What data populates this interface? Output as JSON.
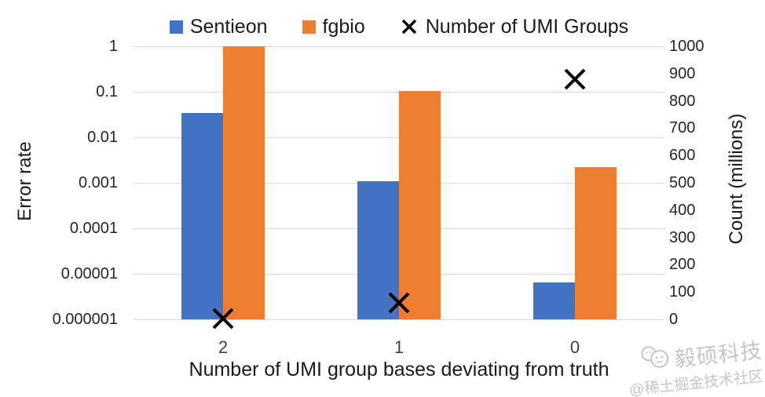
{
  "chart_data": {
    "type": "bar",
    "title": "",
    "categories": [
      "2",
      "1",
      "0"
    ],
    "series": [
      {
        "name": "Sentieon",
        "kind": "bar",
        "axis": "left",
        "color": "#4472C4",
        "values": [
          0.034,
          0.0011,
          6.5e-06
        ]
      },
      {
        "name": "fgbio",
        "kind": "bar",
        "axis": "left",
        "color": "#ED7D31",
        "values": [
          1.0,
          0.105,
          0.0022
        ]
      },
      {
        "name": "Number of UMI Groups",
        "kind": "scatter",
        "marker": "x",
        "axis": "right",
        "color": "#000000",
        "values": [
          2,
          60,
          880
        ]
      }
    ],
    "x_axis": {
      "label": "Number of UMI group bases deviating from truth"
    },
    "left_axis": {
      "label": "Error rate",
      "scale": "log",
      "min": 1e-06,
      "max": 1,
      "tick_labels": [
        "1",
        "0.1",
        "0.01",
        "0.001",
        "0.0001",
        "0.00001",
        "0.000001"
      ]
    },
    "right_axis": {
      "label": "Count (millions)",
      "scale": "linear",
      "min": 0,
      "max": 1000,
      "tick_labels": [
        "1000",
        "900",
        "800",
        "700",
        "600",
        "500",
        "400",
        "300",
        "200",
        "100",
        "0"
      ]
    },
    "grid": true,
    "legend_position": "top"
  },
  "legend": {
    "items": [
      {
        "label": "Sentieon",
        "swatch": "square",
        "color": "#4472C4"
      },
      {
        "label": "fgbio",
        "swatch": "square",
        "color": "#ED7D31"
      },
      {
        "label": "Number of UMI Groups",
        "swatch": "x-marker",
        "color": "#000000"
      }
    ]
  },
  "watermark": {
    "brand": "毅硕科技",
    "community": "@稀土掘金技术社区"
  },
  "colors": {
    "sentieon_bar": "#4472C4",
    "fgbio_bar": "#ED7D31",
    "marker": "#000000",
    "gridline": "#d9d9d9",
    "text": "#262626",
    "watermark": "#c5c5c5"
  }
}
